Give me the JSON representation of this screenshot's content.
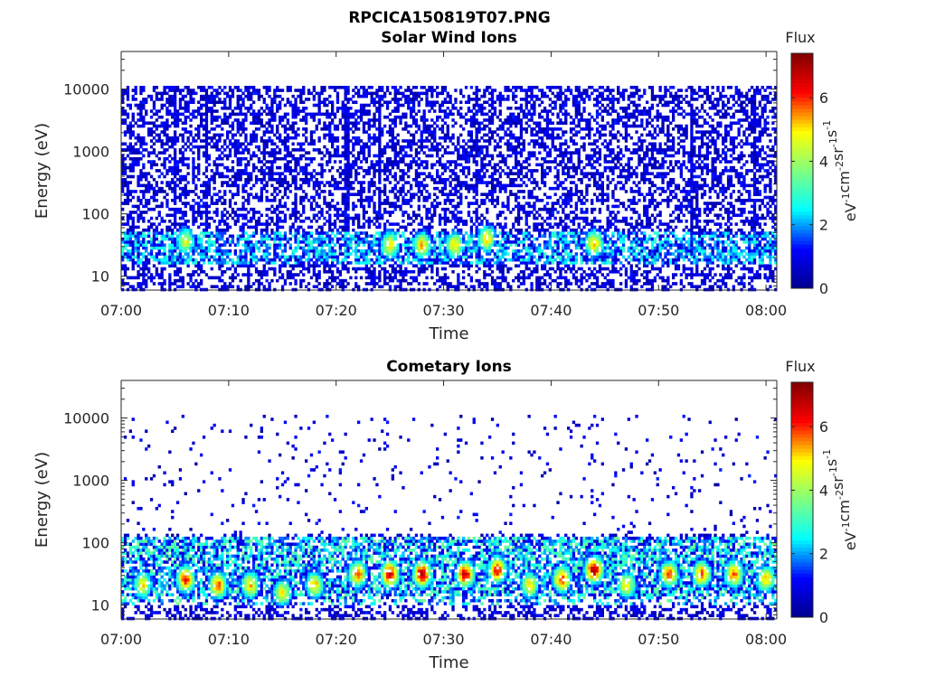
{
  "figure": {
    "title": "RPCICA150819T07.PNG"
  },
  "colormap": {
    "name": "jet",
    "stops": [
      "#00008f",
      "#0000ff",
      "#00ffff",
      "#80ff80",
      "#ffff00",
      "#ff0000",
      "#800000"
    ]
  },
  "chart_data": [
    {
      "type": "heatmap",
      "title": "Solar Wind Ions",
      "xlabel": "Time",
      "ylabel": "Energy (eV)",
      "x_ticks": [
        "07:00",
        "07:10",
        "07:20",
        "07:30",
        "07:40",
        "07:50",
        "08:00"
      ],
      "x_range": [
        "07:00",
        "08:01"
      ],
      "y_scale": "log",
      "y_ticks": [
        "10",
        "100",
        "1000",
        "10000"
      ],
      "y_range": [
        6,
        40000
      ],
      "colorbar": {
        "title": "Flux",
        "label": "eV-1 cm-2 sr-1 s-1",
        "ticks": [
          "0",
          "2",
          "4",
          "6"
        ],
        "range": [
          0,
          7.4
        ]
      },
      "background_flux": 1.0,
      "low_energy_band_eV": [
        15,
        50
      ],
      "vertical_streaks_time": [
        "07:05",
        "07:08",
        "07:21",
        "07:24",
        "07:33",
        "07:53",
        "07:59"
      ],
      "hotspots": [
        {
          "time": "07:06",
          "energy_eV": 35,
          "flux": 4.5
        },
        {
          "time": "07:25",
          "energy_eV": 30,
          "flux": 5.0
        },
        {
          "time": "07:28",
          "energy_eV": 30,
          "flux": 5.2
        },
        {
          "time": "07:31",
          "energy_eV": 30,
          "flux": 5.0
        },
        {
          "time": "07:34",
          "energy_eV": 38,
          "flux": 5.0
        },
        {
          "time": "07:44",
          "energy_eV": 32,
          "flux": 5.3
        }
      ]
    },
    {
      "type": "heatmap",
      "title": "Cometary Ions",
      "xlabel": "Time",
      "ylabel": "Energy (eV)",
      "x_ticks": [
        "07:00",
        "07:10",
        "07:20",
        "07:30",
        "07:40",
        "07:50",
        "08:00"
      ],
      "x_range": [
        "07:00",
        "08:01"
      ],
      "y_scale": "log",
      "y_ticks": [
        "10",
        "100",
        "1000",
        "10000"
      ],
      "y_range": [
        6,
        40000
      ],
      "colorbar": {
        "title": "Flux",
        "label": "eV-1 cm-2 sr-1 s-1",
        "ticks": [
          "0",
          "2",
          "4",
          "6"
        ],
        "range": [
          0,
          7.4
        ]
      },
      "background_flux": 1.0,
      "low_energy_band_eV": [
        10,
        120
      ],
      "hotspots": [
        {
          "time": "07:02",
          "energy_eV": 20,
          "flux": 5.0
        },
        {
          "time": "07:06",
          "energy_eV": 25,
          "flux": 6.2
        },
        {
          "time": "07:09",
          "energy_eV": 20,
          "flux": 5.8
        },
        {
          "time": "07:12",
          "energy_eV": 20,
          "flux": 5.2
        },
        {
          "time": "07:15",
          "energy_eV": 15,
          "flux": 5.0
        },
        {
          "time": "07:18",
          "energy_eV": 20,
          "flux": 5.2
        },
        {
          "time": "07:22",
          "energy_eV": 30,
          "flux": 5.8
        },
        {
          "time": "07:25",
          "energy_eV": 30,
          "flux": 6.6
        },
        {
          "time": "07:28",
          "energy_eV": 30,
          "flux": 6.8
        },
        {
          "time": "07:32",
          "energy_eV": 30,
          "flux": 6.6
        },
        {
          "time": "07:35",
          "energy_eV": 35,
          "flux": 6.2
        },
        {
          "time": "07:38",
          "energy_eV": 20,
          "flux": 5.0
        },
        {
          "time": "07:41",
          "energy_eV": 25,
          "flux": 6.0
        },
        {
          "time": "07:44",
          "energy_eV": 35,
          "flux": 6.8
        },
        {
          "time": "07:47",
          "energy_eV": 20,
          "flux": 5.0
        },
        {
          "time": "07:51",
          "energy_eV": 30,
          "flux": 5.8
        },
        {
          "time": "07:54",
          "energy_eV": 30,
          "flux": 5.8
        },
        {
          "time": "07:57",
          "energy_eV": 30,
          "flux": 5.8
        },
        {
          "time": "08:00",
          "energy_eV": 25,
          "flux": 5.2
        }
      ]
    }
  ]
}
